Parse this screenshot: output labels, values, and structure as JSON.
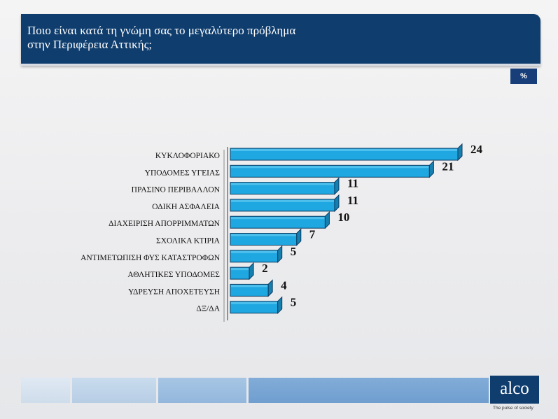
{
  "header": {
    "title": "Ποιο είναι κατά τη γνώμη σας το μεγαλύτερο πρόβλημα\nστην Περιφέρεια Αττικής;"
  },
  "unit_badge": "%",
  "chart_data": {
    "type": "bar",
    "orientation": "horizontal",
    "categories": [
      "ΚΥΚΛΟΦΟΡΙΑΚΟ",
      "ΥΠΟΔΟΜΕΣ ΥΓΕΙΑΣ",
      "ΠΡΑΣΙΝΟ ΠΕΡΙΒΑΛΛΟΝ",
      "ΟΔΙΚΗ ΑΣΦΑΛΕΙΑ",
      "ΔΙΑΧΕΙΡΙΣΗ ΑΠΟΡΡΙΜΜΑΤΩΝ",
      "ΣΧΟΛΙΚΑ ΚΤΙΡΙΑ",
      "ΑΝΤΙΜΕΤΩΠΙΣΗ ΦΥΣ ΚΑΤΑΣΤΡΟΦΩΝ",
      "ΑΘΛΗΤΙΚΕΣ ΥΠΟΔΟΜΕΣ",
      "ΥΔΡΕΥΣΗ ΑΠΟΧΕΤΕΥΣΗ",
      "ΔΞ/ΔΑ"
    ],
    "values": [
      24,
      21,
      11,
      11,
      10,
      7,
      5,
      2,
      4,
      5
    ],
    "xlim": [
      0,
      24
    ],
    "grid": false,
    "legend": "none",
    "bar_color": "#1ea7e0"
  },
  "footer": {
    "logo": "alco",
    "tagline": "The pulse of society"
  }
}
